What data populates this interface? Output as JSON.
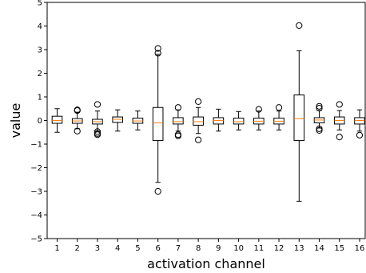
{
  "chart_data": {
    "type": "boxplot",
    "title": "",
    "xlabel": "activation channel",
    "ylabel": "value",
    "ylim": [
      -5,
      5
    ],
    "yticks": [
      -5,
      -4,
      -3,
      -2,
      -1,
      0,
      1,
      2,
      3,
      4,
      5
    ],
    "ytick_labels": [
      "−5",
      "−4",
      "−3",
      "−2",
      "−1",
      "0",
      "1",
      "2",
      "3",
      "4",
      "5"
    ],
    "categories": [
      "1",
      "2",
      "3",
      "4",
      "5",
      "6",
      "7",
      "8",
      "9",
      "10",
      "11",
      "12",
      "13",
      "14",
      "15",
      "16"
    ],
    "box_color": "#000000",
    "median_color": "#ff7f0e",
    "grid": false,
    "boxes": [
      {
        "channel": "1",
        "whislo": -0.5,
        "q1": -0.12,
        "med": 0.0,
        "q3": 0.18,
        "whishi": 0.5,
        "fliers": []
      },
      {
        "channel": "2",
        "whislo": -0.35,
        "q1": -0.12,
        "med": -0.02,
        "q3": 0.08,
        "whishi": 0.35,
        "fliers": [
          0.42,
          0.45,
          -0.45
        ]
      },
      {
        "channel": "3",
        "whislo": -0.45,
        "q1": -0.15,
        "med": -0.05,
        "q3": 0.05,
        "whishi": 0.4,
        "fliers": [
          0.68,
          -0.47,
          -0.55,
          -0.6
        ]
      },
      {
        "channel": "4",
        "whislo": -0.45,
        "q1": -0.08,
        "med": 0.05,
        "q3": 0.15,
        "whishi": 0.45,
        "fliers": []
      },
      {
        "channel": "5",
        "whislo": -0.4,
        "q1": -0.12,
        "med": -0.02,
        "q3": 0.1,
        "whishi": 0.4,
        "fliers": []
      },
      {
        "channel": "6",
        "whislo": -2.62,
        "q1": -0.85,
        "med": -0.1,
        "q3": 0.55,
        "whishi": 2.8,
        "fliers": [
          3.05,
          2.85,
          -3.0
        ]
      },
      {
        "channel": "7",
        "whislo": -0.45,
        "q1": -0.15,
        "med": -0.05,
        "q3": 0.12,
        "whishi": 0.45,
        "fliers": [
          0.55,
          -0.6,
          -0.65
        ]
      },
      {
        "channel": "8",
        "whislo": -0.55,
        "q1": -0.2,
        "med": -0.05,
        "q3": 0.15,
        "whishi": 0.55,
        "fliers": [
          0.8,
          -0.82
        ]
      },
      {
        "channel": "9",
        "whislo": -0.45,
        "q1": -0.15,
        "med": 0.0,
        "q3": 0.12,
        "whishi": 0.48,
        "fliers": []
      },
      {
        "channel": "10",
        "whislo": -0.4,
        "q1": -0.15,
        "med": -0.05,
        "q3": 0.1,
        "whishi": 0.38,
        "fliers": []
      },
      {
        "channel": "11",
        "whislo": -0.4,
        "q1": -0.15,
        "med": -0.03,
        "q3": 0.1,
        "whishi": 0.4,
        "fliers": [
          0.47
        ]
      },
      {
        "channel": "12",
        "whislo": -0.4,
        "q1": -0.15,
        "med": -0.03,
        "q3": 0.1,
        "whishi": 0.4,
        "fliers": [
          0.55
        ]
      },
      {
        "channel": "13",
        "whislo": -3.42,
        "q1": -0.85,
        "med": 0.08,
        "q3": 1.08,
        "whishi": 2.95,
        "fliers": [
          4.02
        ]
      },
      {
        "channel": "14",
        "whislo": -0.32,
        "q1": -0.1,
        "med": 0.02,
        "q3": 0.12,
        "whishi": 0.42,
        "fliers": [
          0.6,
          0.52,
          -0.35,
          -0.42
        ]
      },
      {
        "channel": "15",
        "whislo": -0.4,
        "q1": -0.15,
        "med": 0.0,
        "q3": 0.15,
        "whishi": 0.42,
        "fliers": [
          0.68,
          -0.7
        ]
      },
      {
        "channel": "16",
        "whislo": -0.45,
        "q1": -0.15,
        "med": 0.0,
        "q3": 0.12,
        "whishi": 0.45,
        "fliers": [
          -0.62
        ]
      }
    ]
  }
}
